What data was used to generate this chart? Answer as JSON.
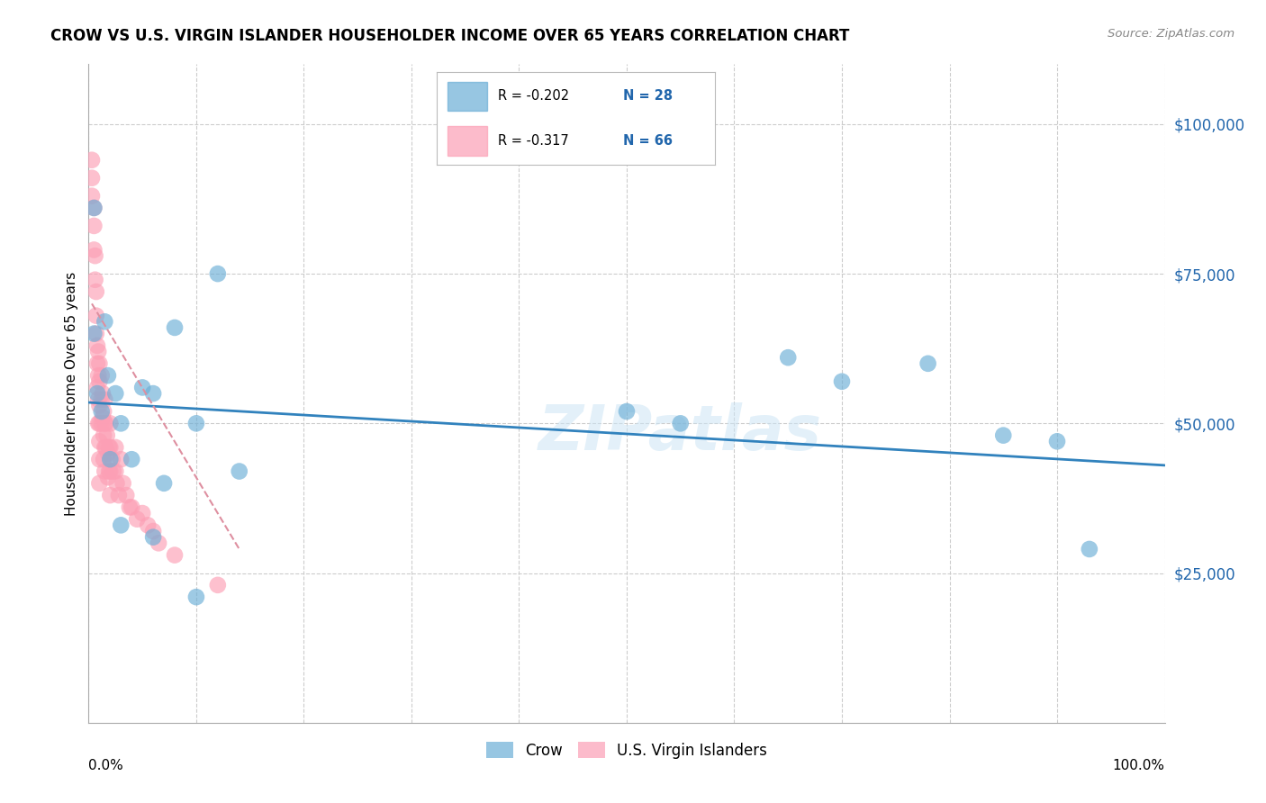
{
  "title": "CROW VS U.S. VIRGIN ISLANDER HOUSEHOLDER INCOME OVER 65 YEARS CORRELATION CHART",
  "source": "Source: ZipAtlas.com",
  "ylabel": "Householder Income Over 65 years",
  "xlim": [
    0.0,
    1.0
  ],
  "ylim": [
    0,
    110000
  ],
  "yticks": [
    25000,
    50000,
    75000,
    100000
  ],
  "ytick_labels": [
    "$25,000",
    "$50,000",
    "$75,000",
    "$100,000"
  ],
  "legend_crow_R": "-0.202",
  "legend_crow_N": "28",
  "legend_usvi_R": "-0.317",
  "legend_usvi_N": "66",
  "crow_color": "#6baed6",
  "usvi_color": "#fc9fb5",
  "crow_line_color": "#3182bd",
  "usvi_line_color": "#de8fa0",
  "background_color": "#ffffff",
  "grid_color": "#cccccc",
  "watermark": "ZIPatlas",
  "crow_x": [
    0.005,
    0.005,
    0.008,
    0.012,
    0.015,
    0.018,
    0.02,
    0.025,
    0.03,
    0.04,
    0.05,
    0.06,
    0.07,
    0.08,
    0.1,
    0.12,
    0.14,
    0.5,
    0.55,
    0.65,
    0.7,
    0.78,
    0.85,
    0.9,
    0.93,
    0.03,
    0.06,
    0.1
  ],
  "crow_y": [
    86000,
    65000,
    55000,
    52000,
    67000,
    58000,
    44000,
    55000,
    50000,
    44000,
    56000,
    55000,
    40000,
    66000,
    50000,
    75000,
    42000,
    52000,
    50000,
    61000,
    57000,
    60000,
    48000,
    47000,
    29000,
    33000,
    31000,
    21000
  ],
  "usvi_x": [
    0.003,
    0.003,
    0.003,
    0.005,
    0.005,
    0.005,
    0.006,
    0.006,
    0.007,
    0.007,
    0.007,
    0.008,
    0.008,
    0.008,
    0.009,
    0.009,
    0.009,
    0.009,
    0.01,
    0.01,
    0.01,
    0.01,
    0.01,
    0.01,
    0.01,
    0.012,
    0.012,
    0.012,
    0.013,
    0.013,
    0.014,
    0.014,
    0.014,
    0.015,
    0.015,
    0.015,
    0.015,
    0.016,
    0.016,
    0.017,
    0.018,
    0.018,
    0.019,
    0.019,
    0.02,
    0.02,
    0.02,
    0.02,
    0.022,
    0.023,
    0.025,
    0.025,
    0.026,
    0.028,
    0.03,
    0.032,
    0.035,
    0.038,
    0.04,
    0.045,
    0.05,
    0.055,
    0.06,
    0.065,
    0.08,
    0.12
  ],
  "usvi_y": [
    94000,
    91000,
    88000,
    86000,
    83000,
    79000,
    78000,
    74000,
    72000,
    68000,
    65000,
    63000,
    60000,
    56000,
    62000,
    58000,
    54000,
    50000,
    60000,
    57000,
    53000,
    50000,
    47000,
    44000,
    40000,
    58000,
    54000,
    50000,
    55000,
    51000,
    52000,
    48000,
    44000,
    54000,
    50000,
    46000,
    42000,
    50000,
    46000,
    48000,
    45000,
    41000,
    46000,
    42000,
    50000,
    46000,
    42000,
    38000,
    44000,
    42000,
    46000,
    42000,
    40000,
    38000,
    44000,
    40000,
    38000,
    36000,
    36000,
    34000,
    35000,
    33000,
    32000,
    30000,
    28000,
    23000
  ],
  "crow_trendline_x": [
    0.0,
    1.0
  ],
  "crow_trendline_y": [
    53500,
    43000
  ],
  "usvi_trendline_x": [
    0.003,
    0.14
  ],
  "usvi_trendline_y": [
    70000,
    29000
  ]
}
